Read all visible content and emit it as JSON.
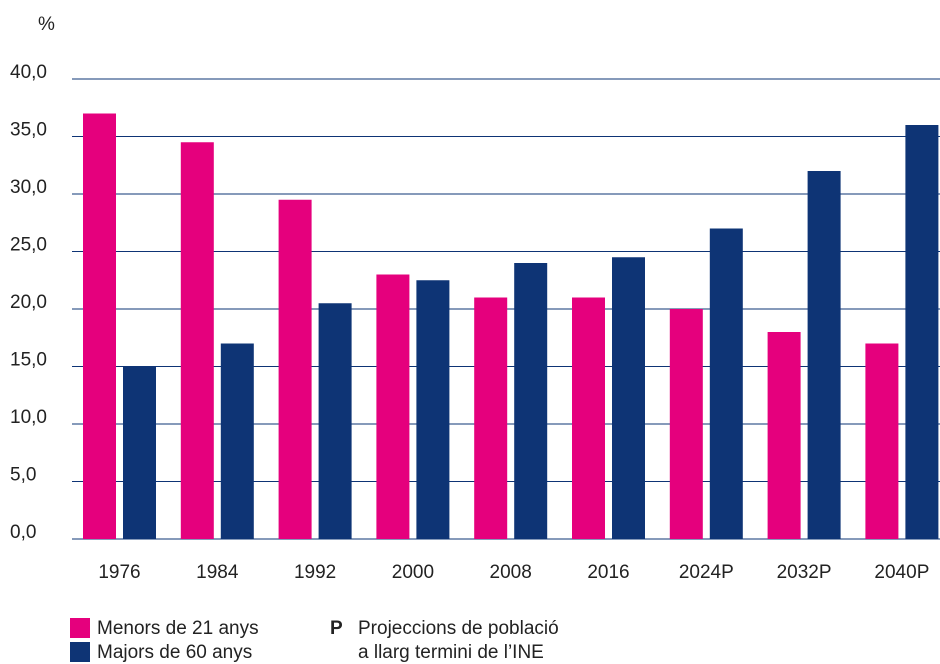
{
  "chart_data": {
    "type": "bar",
    "y_label": "%",
    "categories": [
      "1976",
      "1984",
      "1992",
      "2000",
      "2008",
      "2016",
      "2024P",
      "2032P",
      "2040P"
    ],
    "series": [
      {
        "name": "Menors de 21 anys",
        "color": "#e5007d",
        "values": [
          37,
          34.5,
          29.5,
          23,
          21,
          21,
          20,
          18,
          17
        ]
      },
      {
        "name": "Majors de 60 anys",
        "color": "#0e3475",
        "values": [
          15,
          17,
          20.5,
          22.5,
          24,
          24.5,
          27,
          32,
          36
        ]
      }
    ],
    "ylim": [
      0,
      40
    ],
    "yticks": [
      {
        "value": 0,
        "label": "0,0"
      },
      {
        "value": 5,
        "label": "5,0"
      },
      {
        "value": 10,
        "label": "10,0"
      },
      {
        "value": 15,
        "label": "15,0"
      },
      {
        "value": 20,
        "label": "20,0"
      },
      {
        "value": 25,
        "label": "25,0"
      },
      {
        "value": 30,
        "label": "30,0"
      },
      {
        "value": 35,
        "label": "35,0"
      },
      {
        "value": 40,
        "label": "40,0"
      }
    ],
    "grid": true,
    "note": {
      "marker": "P",
      "lines": [
        "Projeccions de població",
        "a llarg termini de l’INE"
      ]
    }
  }
}
